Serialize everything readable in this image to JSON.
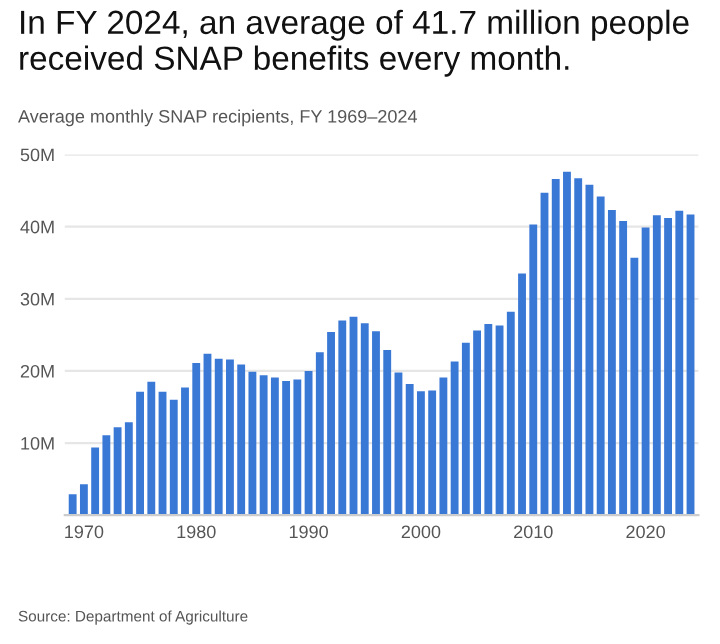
{
  "chart_data": {
    "type": "bar",
    "title": "In FY 2024, an average of 41.7 million people received SNAP benefits every month.",
    "subtitle": "Average monthly SNAP recipients, FY 1969–2024",
    "annotations": [
      "Source: Department of Agriculture"
    ],
    "x": [
      1969,
      1970,
      1971,
      1972,
      1973,
      1974,
      1975,
      1976,
      1977,
      1978,
      1979,
      1980,
      1981,
      1982,
      1983,
      1984,
      1985,
      1986,
      1987,
      1988,
      1989,
      1990,
      1991,
      1992,
      1993,
      1994,
      1995,
      1996,
      1997,
      1998,
      1999,
      2000,
      2001,
      2002,
      2003,
      2004,
      2005,
      2006,
      2007,
      2008,
      2009,
      2010,
      2011,
      2012,
      2013,
      2014,
      2015,
      2016,
      2017,
      2018,
      2019,
      2020,
      2021,
      2022,
      2023,
      2024
    ],
    "values": [
      2.9,
      4.3,
      9.4,
      11.1,
      12.2,
      12.9,
      17.1,
      18.5,
      17.1,
      16.0,
      17.7,
      21.1,
      22.4,
      21.7,
      21.6,
      20.9,
      19.9,
      19.4,
      19.1,
      18.6,
      18.8,
      20.0,
      22.6,
      25.4,
      27.0,
      27.5,
      26.6,
      25.5,
      22.9,
      19.8,
      18.2,
      17.2,
      17.3,
      19.1,
      21.3,
      23.9,
      25.6,
      26.5,
      26.3,
      28.2,
      33.5,
      40.3,
      44.7,
      46.6,
      47.6,
      46.7,
      45.8,
      44.2,
      42.3,
      40.8,
      35.7,
      39.9,
      41.6,
      41.2,
      42.2,
      41.7
    ],
    "color": "#3a78d6",
    "xlim": [
      1968.3,
      2024.7
    ],
    "xticks": [
      1970,
      1980,
      1990,
      2000,
      2010,
      2020
    ],
    "ylim": [
      0,
      50
    ],
    "yticks": [
      {
        "value": 10,
        "label": "10M"
      },
      {
        "value": 20,
        "label": "20M"
      },
      {
        "value": 30,
        "label": "30M"
      },
      {
        "value": 40,
        "label": "40M"
      },
      {
        "value": 50,
        "label": "50M"
      }
    ],
    "grid": "y"
  }
}
